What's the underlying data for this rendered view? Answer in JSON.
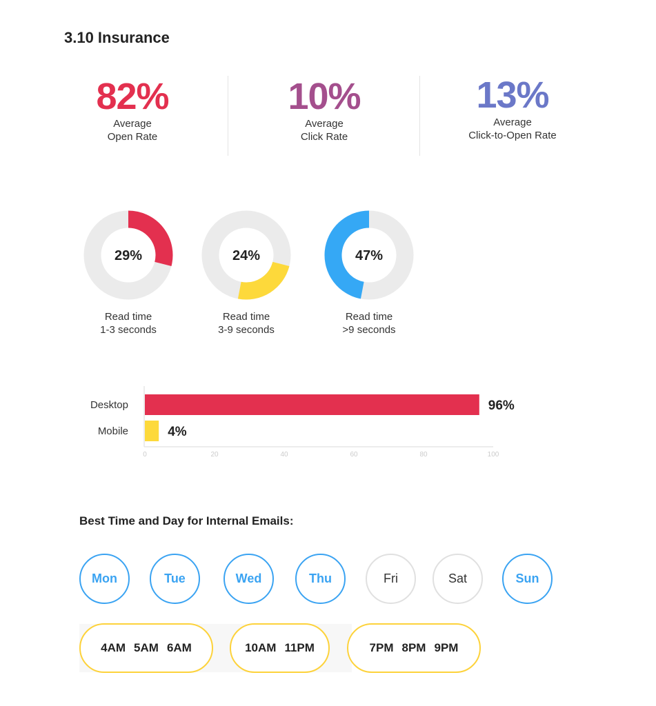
{
  "title": "3.10 Insurance",
  "stats": [
    {
      "value": "82%",
      "label1": "Average",
      "label2": "Open Rate",
      "color": "#e3304f"
    },
    {
      "value": "10%",
      "label1": "Average",
      "label2": "Click Rate",
      "color": "#a44f8d"
    },
    {
      "value": "13%",
      "label1": "Average",
      "label2": "Click-to-Open Rate",
      "color": "#6b78c8"
    }
  ],
  "chart_data": [
    {
      "type": "pie",
      "variant": "donut",
      "slices": [
        {
          "pct_label": "29%",
          "value": 29,
          "label1": "Read time",
          "label2": "1-3 seconds",
          "color": "#e3304f"
        },
        {
          "pct_label": "24%",
          "value": 24,
          "label1": "Read time",
          "label2": "3-9 seconds",
          "color": "#fdd93b"
        },
        {
          "pct_label": "47%",
          "value": 47,
          "label1": "Read time",
          "label2": ">9 seconds",
          "color": "#35a8f5"
        }
      ]
    },
    {
      "type": "bar",
      "orientation": "horizontal",
      "categories": [
        "Desktop",
        "Mobile"
      ],
      "values": [
        96,
        4
      ],
      "data_labels": [
        "96%",
        "4%"
      ],
      "colors": [
        "#e3304f",
        "#fdd93b"
      ],
      "xlim": [
        0,
        100
      ],
      "xticks": [
        "0",
        "20",
        "40",
        "60",
        "80",
        "100"
      ],
      "grid": false
    }
  ],
  "best_time": {
    "heading": "Best Time and Day for Internal Emails:",
    "days": [
      {
        "label": "Mon",
        "active": true
      },
      {
        "label": "Tue",
        "active": true
      },
      {
        "label": "Wed",
        "active": true
      },
      {
        "label": "Thu",
        "active": true
      },
      {
        "label": "Fri",
        "active": false
      },
      {
        "label": "Sat",
        "active": false
      },
      {
        "label": "Sun",
        "active": true
      }
    ],
    "time_groups": [
      [
        "4AM",
        "5AM",
        "6AM"
      ],
      [
        "10AM",
        "11PM"
      ],
      [
        "7PM",
        "8PM",
        "9PM"
      ]
    ]
  }
}
